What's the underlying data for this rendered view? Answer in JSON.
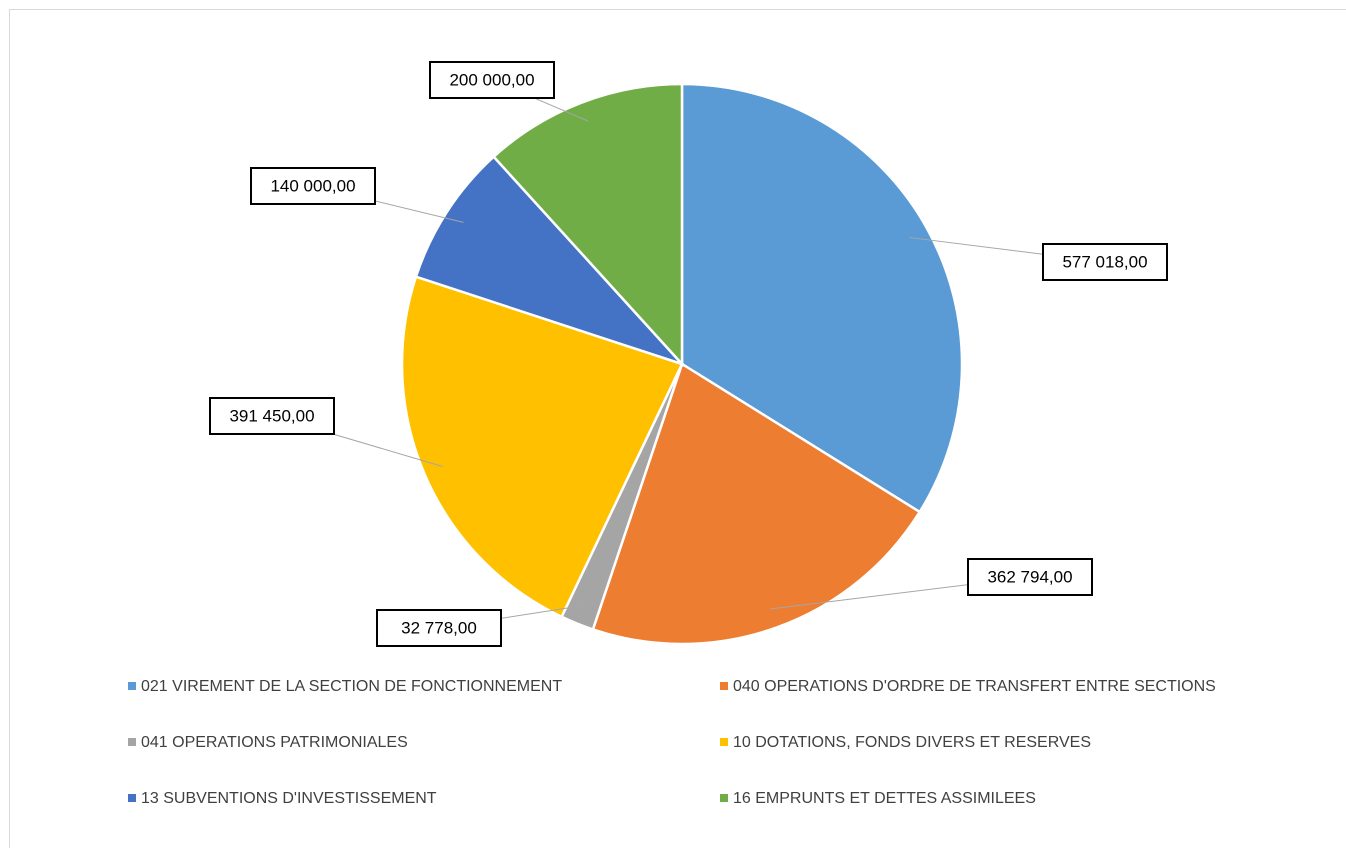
{
  "chart_data": {
    "type": "pie",
    "categories": [
      "021 VIREMENT DE LA SECTION DE FONCTIONNEMENT",
      "040 OPERATIONS D'ORDRE DE TRANSFERT ENTRE SECTIONS",
      "041 OPERATIONS PATRIMONIALES",
      "10 DOTATIONS, FONDS DIVERS ET RESERVES",
      "13 SUBVENTIONS D'INVESTISSEMENT",
      "16 EMPRUNTS ET DETTES ASSIMILEES"
    ],
    "values": [
      577018,
      362794,
      32778,
      391450,
      140000,
      200000
    ],
    "value_labels": [
      "577 018,00",
      "362 794,00",
      "32 778,00",
      "391 450,00",
      "140 000,00",
      "200 000,00"
    ],
    "colors": [
      "#5b9bd5",
      "#ed7d31",
      "#a5a5a5",
      "#ffc000",
      "#4472c4",
      "#70ad47"
    ],
    "legend": "bottom"
  }
}
